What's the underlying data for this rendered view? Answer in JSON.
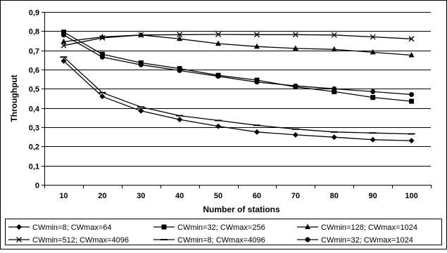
{
  "chart_data": {
    "type": "line",
    "title": "",
    "xlabel": "Number of stations",
    "ylabel": "Throughput",
    "x": [
      10,
      20,
      30,
      40,
      50,
      60,
      70,
      80,
      90,
      100
    ],
    "x_tick_labels": [
      "10",
      "20",
      "30",
      "40",
      "50",
      "60",
      "70",
      "80",
      "90",
      "100"
    ],
    "ylim": [
      0,
      0.9
    ],
    "y_ticks": [
      0,
      0.1,
      0.2,
      0.3,
      0.4,
      0.5,
      0.6,
      0.7,
      0.8,
      0.9
    ],
    "y_tick_labels": [
      "0",
      "0,1",
      "0,2",
      "0,3",
      "0,4",
      "0,5",
      "0,6",
      "0,7",
      "0,8",
      "0,9"
    ],
    "grid": "horizontal",
    "legend_position": "bottom",
    "series": [
      {
        "name": "CWmin=8; CWmax=64",
        "marker": "diamond",
        "values": [
          0.645,
          0.46,
          0.385,
          0.34,
          0.305,
          0.275,
          0.26,
          0.248,
          0.235,
          0.23
        ]
      },
      {
        "name": "CWmin=32; CWmax=256",
        "marker": "square",
        "values": [
          0.795,
          0.68,
          0.635,
          0.605,
          0.57,
          0.545,
          0.51,
          0.485,
          0.455,
          0.435
        ]
      },
      {
        "name": "CWmin=128; CWmax=1024",
        "marker": "triangle",
        "values": [
          0.745,
          0.77,
          0.78,
          0.76,
          0.735,
          0.72,
          0.71,
          0.705,
          0.69,
          0.675
        ]
      },
      {
        "name": "CWmin=512; CWmax=4096",
        "marker": "x",
        "values": [
          0.725,
          0.765,
          0.78,
          0.782,
          0.783,
          0.782,
          0.782,
          0.78,
          0.77,
          0.76
        ]
      },
      {
        "name": "CWmin=8; CWmax=4096",
        "marker": "dash",
        "values": [
          0.665,
          0.48,
          0.405,
          0.36,
          0.335,
          0.31,
          0.29,
          0.275,
          0.27,
          0.265
        ]
      },
      {
        "name": "CWmin=32; CWmax=1024",
        "marker": "circle",
        "values": [
          0.78,
          0.665,
          0.625,
          0.595,
          0.565,
          0.535,
          0.515,
          0.5,
          0.485,
          0.47
        ]
      }
    ]
  }
}
